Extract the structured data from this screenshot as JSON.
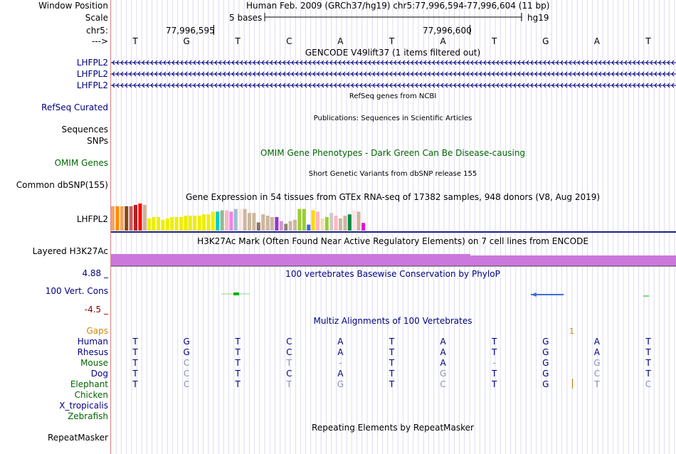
{
  "header": {
    "window_position_label": "Window Position",
    "window_position_value": "Human Feb. 2009 (GRCh37/hg19)   chr5:77,996,594-77,996,604 (11 bp)",
    "scale_label": "Scale",
    "scale_value": "5 bases",
    "scale_assembly": "hg19",
    "chrom_label": "chr5:",
    "coord_left": "77,996,595",
    "coord_right": "77,996,600",
    "strand_label": "--->",
    "bases": [
      "T",
      "G",
      "T",
      "C",
      "A",
      "T",
      "A",
      "T",
      "G",
      "A",
      "T"
    ]
  },
  "gencode": {
    "title": "GENCODE V49lift37 (1 items filtered out)",
    "labels": [
      "LHFPL2",
      "LHFPL2",
      "LHFPL2"
    ]
  },
  "refseq": {
    "title": "RefSeq genes from NCBI",
    "label": "RefSeq Curated"
  },
  "publications": {
    "title": "Publications: Sequences in Scientific Articles",
    "labels": [
      "Sequences",
      "SNPs"
    ]
  },
  "omim": {
    "title": "OMIM Gene Phenotypes - Dark Green Can Be Disease-causing",
    "label": "OMIM Genes"
  },
  "dbsnp": {
    "title": "Short Genetic Variants from dbSNP release 155",
    "label": "Common dbSNP(155)"
  },
  "gtex": {
    "title": "Gene Expression in 54 tissues from GTEx RNA-seq of 17382 samples, 948 donors (V8, Aug 2019)",
    "label": "LHFPL2",
    "bars": [
      {
        "v": 0.9,
        "c": "#f4a460"
      },
      {
        "v": 0.9,
        "c": "#ff8c00"
      },
      {
        "v": 0.9,
        "c": "#f4a460"
      },
      {
        "v": 0.9,
        "c": "#8b4513"
      },
      {
        "v": 0.9,
        "c": "#cd5c5c"
      },
      {
        "v": 0.95,
        "c": "#b22222"
      },
      {
        "v": 1.0,
        "c": "#ff0000"
      },
      {
        "v": 0.95,
        "c": "#d2b48c"
      },
      {
        "v": 0.45,
        "c": "#eeee00"
      },
      {
        "v": 0.5,
        "c": "#eeee00"
      },
      {
        "v": 0.5,
        "c": "#eeee00"
      },
      {
        "v": 0.4,
        "c": "#eeee00"
      },
      {
        "v": 0.45,
        "c": "#eeee00"
      },
      {
        "v": 0.5,
        "c": "#eeee00"
      },
      {
        "v": 0.5,
        "c": "#eeee00"
      },
      {
        "v": 0.5,
        "c": "#eeee00"
      },
      {
        "v": 0.55,
        "c": "#eeee00"
      },
      {
        "v": 0.55,
        "c": "#eeee00"
      },
      {
        "v": 0.55,
        "c": "#eeee00"
      },
      {
        "v": 0.55,
        "c": "#eeee00"
      },
      {
        "v": 0.6,
        "c": "#eeee00"
      },
      {
        "v": 0.6,
        "c": "#eeee00"
      },
      {
        "v": 0.7,
        "c": "#eeee00"
      },
      {
        "v": 0.7,
        "c": "#00cdcd"
      },
      {
        "v": 0.75,
        "c": "#8fbc8f"
      },
      {
        "v": 0.75,
        "c": "#ffb6c1"
      },
      {
        "v": 0.7,
        "c": "#ee82ee"
      },
      {
        "v": 0.8,
        "c": "#9ac0cd"
      },
      {
        "v": 0.8,
        "c": "#ffe4e1"
      },
      {
        "v": 0.8,
        "c": "#cdb79e"
      },
      {
        "v": 0.65,
        "c": "#cdb79e"
      },
      {
        "v": 0.65,
        "c": "#cdb79e"
      },
      {
        "v": 0.3,
        "c": "#8b7355"
      },
      {
        "v": 0.6,
        "c": "#cdb79e"
      },
      {
        "v": 0.55,
        "c": "#cdb79e"
      },
      {
        "v": 0.5,
        "c": "#cdb79e"
      },
      {
        "v": 0.5,
        "c": "#9a32cd"
      },
      {
        "v": 0.35,
        "c": "#cd96cd"
      },
      {
        "v": 0.25,
        "c": "#8b8378"
      },
      {
        "v": 0.35,
        "c": "#cdb79e"
      },
      {
        "v": 0.4,
        "c": "#cdb79e"
      },
      {
        "v": 0.8,
        "c": "#9acd32"
      },
      {
        "v": 0.8,
        "c": "#9acd32"
      },
      {
        "v": 0.22,
        "c": "#4169e1"
      },
      {
        "v": 0.75,
        "c": "#ffd700"
      },
      {
        "v": 0.7,
        "c": "#ffb6c1"
      },
      {
        "v": 0.45,
        "c": "#f5deb3"
      },
      {
        "v": 0.5,
        "c": "#9acd32"
      },
      {
        "v": 0.65,
        "c": "#cdc9c9"
      },
      {
        "v": 0.55,
        "c": "#ffb6c1"
      },
      {
        "v": 0.45,
        "c": "#cdb79e"
      },
      {
        "v": 0.55,
        "c": "#cdb79e"
      },
      {
        "v": 0.6,
        "c": "#008b45"
      },
      {
        "v": 0.75,
        "c": "#ffe4e1"
      },
      {
        "v": 0.7,
        "c": "#cdb79e"
      },
      {
        "v": 0.28,
        "c": "#ee00ee"
      }
    ]
  },
  "h3k27ac": {
    "title": "H3K27Ac Mark (Often Found Near Active Regulatory Elements) on 7 cell lines from ENCODE",
    "label": "Layered H3K27Ac",
    "color": "#cc77dd"
  },
  "phylop": {
    "title": "100 vertebrates Basewise Conservation by PhyloP",
    "label": "100 Vert. Cons",
    "max_label": "4.88 _",
    "min_label": "-4.5 _"
  },
  "multiz": {
    "title": "Multiz Alignments of 100 Vertebrates",
    "gaps_label": "Gaps",
    "gap_count": "1",
    "species": [
      {
        "name": "Human",
        "color": "#000080",
        "bases": [
          "T",
          "G",
          "T",
          "C",
          "A",
          "T",
          "A",
          "T",
          "G",
          "A",
          "T"
        ],
        "dim": [
          0,
          0,
          0,
          0,
          0,
          0,
          0,
          0,
          0,
          0,
          0
        ]
      },
      {
        "name": "Rhesus",
        "color": "#000080",
        "bases": [
          "T",
          "G",
          "T",
          "C",
          "A",
          "T",
          "A",
          "T",
          "G",
          "A",
          "T"
        ],
        "dim": [
          0,
          0,
          0,
          0,
          0,
          0,
          0,
          0,
          0,
          0,
          0
        ]
      },
      {
        "name": "Mouse",
        "color": "#006400",
        "bases": [
          "T",
          "C",
          "T",
          "T",
          "-",
          "T",
          "A",
          "-",
          "G",
          "G",
          "T"
        ],
        "dim": [
          0,
          1,
          0,
          1,
          1,
          0,
          0,
          1,
          0,
          1,
          0
        ]
      },
      {
        "name": "Dog",
        "color": "#000080",
        "bases": [
          "T",
          "C",
          "T",
          "C",
          "A",
          "T",
          "G",
          "T",
          "G",
          "C",
          "T"
        ],
        "dim": [
          0,
          1,
          0,
          0,
          0,
          0,
          1,
          0,
          0,
          1,
          0
        ]
      },
      {
        "name": "Elephant",
        "color": "#006400",
        "bases": [
          "T",
          "C",
          "T",
          "T",
          "G",
          "T",
          "C",
          "T",
          "G",
          "T",
          "C"
        ],
        "dim": [
          0,
          1,
          0,
          1,
          1,
          0,
          1,
          0,
          0,
          1,
          1
        ]
      },
      {
        "name": "Chicken",
        "color": "#006400",
        "bases": [],
        "dim": []
      },
      {
        "name": "X_tropicalis",
        "color": "#000080",
        "bases": [],
        "dim": []
      },
      {
        "name": "Zebrafish",
        "color": "#006400",
        "bases": [],
        "dim": []
      }
    ]
  },
  "repeatmasker": {
    "title": "Repeating Elements by RepeatMasker",
    "label": "RepeatMasker"
  }
}
